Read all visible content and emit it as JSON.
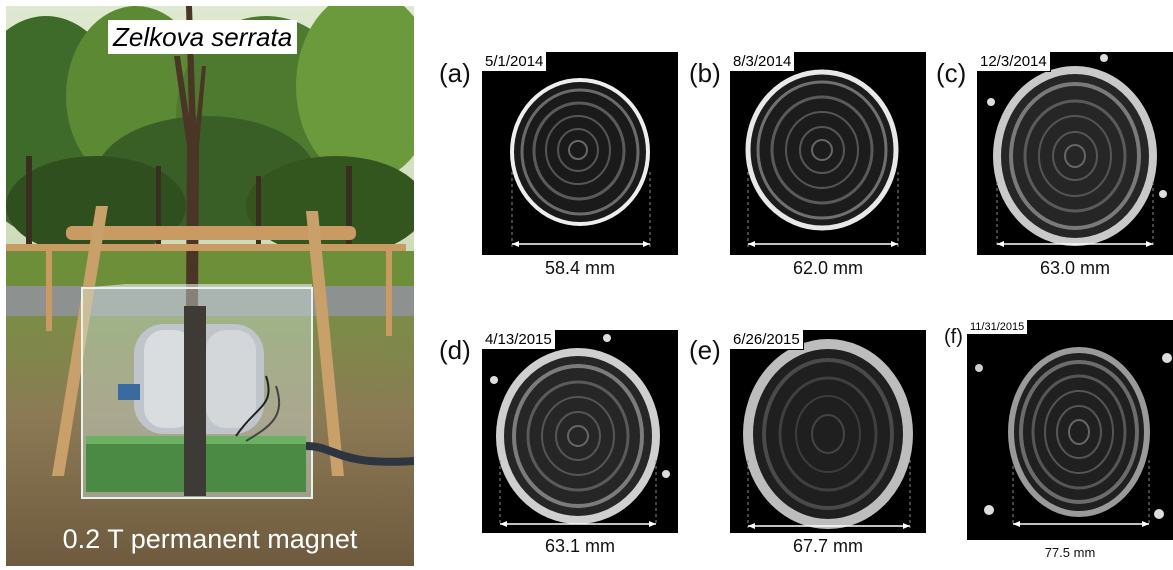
{
  "photo": {
    "title": "Zelkova serrata",
    "caption": "0.2 T permanent magnet"
  },
  "panels": [
    {
      "label": "(a)",
      "date": "5/1/2014",
      "diameter": "58.4 mm"
    },
    {
      "label": "(b)",
      "date": "8/3/2014",
      "diameter": "62.0 mm"
    },
    {
      "label": "(c)",
      "date": "12/3/2014",
      "diameter": "63.0 mm"
    },
    {
      "label": "(d)",
      "date": "4/13/2015",
      "diameter": "63.1 mm"
    },
    {
      "label": "(e)",
      "date": "6/26/2015",
      "diameter": "67.7 mm"
    },
    {
      "label": "(f)",
      "date": "11/31/2015",
      "diameter": "77.5 mm"
    }
  ]
}
